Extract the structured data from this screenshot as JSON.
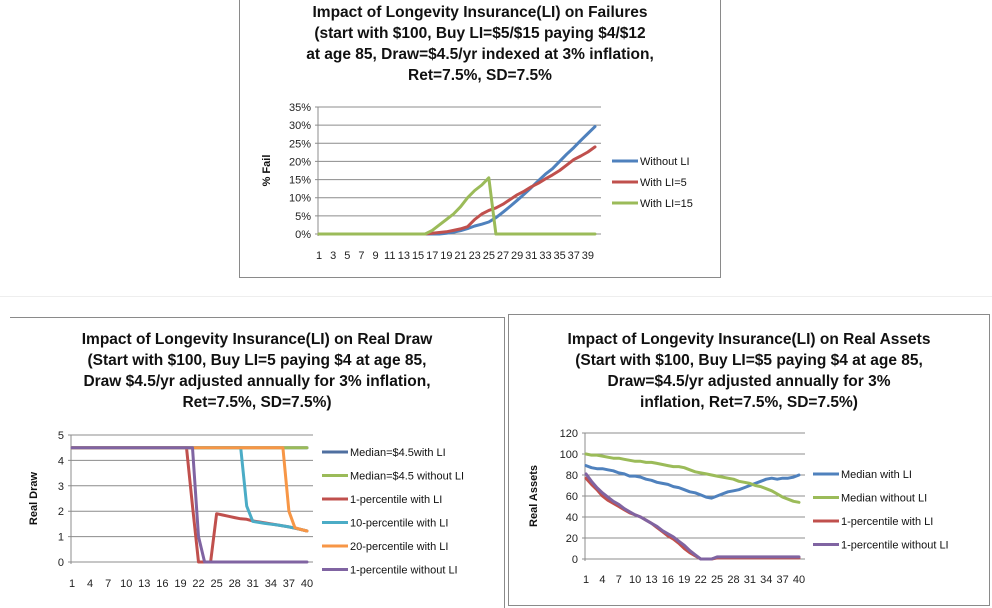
{
  "chart_data": [
    {
      "id": "failures",
      "type": "line",
      "title": "Impact of Longevity Insurance(LI) on Failures\n(start with $100, Buy LI=$5/$15 paying $4/$12\nat age 85, Draw=$4.5/yr indexed at 3% inflation,\nRet=7.5%, SD=7.5%",
      "xlabel": "",
      "ylabel": "% Fail",
      "ylim": [
        0,
        0.35
      ],
      "yticks": [
        0,
        0.05,
        0.1,
        0.15,
        0.2,
        0.25,
        0.3,
        0.35
      ],
      "ytick_labels": [
        "0%",
        "5%",
        "10%",
        "15%",
        "20%",
        "25%",
        "30%",
        "35%"
      ],
      "x": [
        1,
        2,
        3,
        4,
        5,
        6,
        7,
        8,
        9,
        10,
        11,
        12,
        13,
        14,
        15,
        16,
        17,
        18,
        19,
        20,
        21,
        22,
        23,
        24,
        25,
        26,
        27,
        28,
        29,
        30,
        31,
        32,
        33,
        34,
        35,
        36,
        37,
        38,
        39,
        40
      ],
      "xtick_labels": [
        "1",
        "3",
        "5",
        "7",
        "9",
        "11",
        "13",
        "15",
        "17",
        "19",
        "21",
        "23",
        "25",
        "27",
        "29",
        "31",
        "33",
        "35",
        "37",
        "39"
      ],
      "grid": true,
      "legend": "right",
      "series": [
        {
          "name": "Without LI",
          "color": "#4f81bd",
          "values": [
            0,
            0,
            0,
            0,
            0,
            0,
            0,
            0,
            0,
            0,
            0,
            0,
            0,
            0,
            0,
            0,
            0,
            0,
            0.002,
            0.005,
            0.009,
            0.015,
            0.022,
            0.027,
            0.033,
            0.045,
            0.06,
            0.076,
            0.093,
            0.11,
            0.128,
            0.147,
            0.165,
            0.18,
            0.2,
            0.22,
            0.238,
            0.258,
            0.277,
            0.296
          ]
        },
        {
          "name": "With LI=5",
          "color": "#c0504d",
          "values": [
            0,
            0,
            0,
            0,
            0,
            0,
            0,
            0,
            0,
            0,
            0,
            0,
            0,
            0,
            0,
            0,
            0.002,
            0.004,
            0.006,
            0.01,
            0.014,
            0.02,
            0.04,
            0.055,
            0.065,
            0.072,
            0.082,
            0.095,
            0.108,
            0.118,
            0.13,
            0.14,
            0.152,
            0.163,
            0.175,
            0.19,
            0.205,
            0.215,
            0.226,
            0.24
          ]
        },
        {
          "name": "With LI=15",
          "color": "#9bbb59",
          "values": [
            0,
            0,
            0,
            0,
            0,
            0,
            0,
            0,
            0,
            0,
            0,
            0,
            0,
            0,
            0,
            0,
            0.01,
            0.025,
            0.04,
            0.055,
            0.075,
            0.1,
            0.12,
            0.135,
            0.155,
            0,
            0,
            0,
            0,
            0,
            0,
            0,
            0,
            0,
            0,
            0,
            0,
            0,
            0,
            0
          ]
        }
      ]
    },
    {
      "id": "real_draw",
      "type": "line",
      "title": "Impact of Longevity Insurance(LI) on Real Draw\n(Start with $100, Buy LI=5 paying $4 at age 85,\nDraw $4.5/yr adjusted annually for 3% inflation,\nRet=7.5%, SD=7.5%)",
      "xlabel": "",
      "ylabel": "Real Draw",
      "ylim": [
        0,
        5
      ],
      "yticks": [
        0,
        1,
        2,
        3,
        4,
        5
      ],
      "ytick_labels": [
        "0",
        "1",
        "2",
        "3",
        "4",
        "5"
      ],
      "x": [
        1,
        2,
        3,
        4,
        5,
        6,
        7,
        8,
        9,
        10,
        11,
        12,
        13,
        14,
        15,
        16,
        17,
        18,
        19,
        20,
        21,
        22,
        23,
        24,
        25,
        26,
        27,
        28,
        29,
        30,
        31,
        32,
        33,
        34,
        35,
        36,
        37,
        38,
        39,
        40
      ],
      "xtick_labels": [
        "1",
        "4",
        "7",
        "10",
        "13",
        "16",
        "19",
        "22",
        "25",
        "28",
        "31",
        "34",
        "37",
        "40"
      ],
      "grid": true,
      "legend": "right",
      "series": [
        {
          "name": "Median=$4.5with LI",
          "color": "#4f6fa0",
          "values": [
            4.5,
            4.5,
            4.5,
            4.5,
            4.5,
            4.5,
            4.5,
            4.5,
            4.5,
            4.5,
            4.5,
            4.5,
            4.5,
            4.5,
            4.5,
            4.5,
            4.5,
            4.5,
            4.5,
            4.5,
            4.5,
            4.5,
            4.5,
            4.5,
            4.5,
            4.5,
            4.5,
            4.5,
            4.5,
            4.5,
            4.5,
            4.5,
            4.5,
            4.5,
            4.5,
            4.5,
            4.5,
            4.5,
            4.5,
            4.5
          ]
        },
        {
          "name": "Median=$4.5 without LI",
          "color": "#9bbb59",
          "values": [
            4.5,
            4.5,
            4.5,
            4.5,
            4.5,
            4.5,
            4.5,
            4.5,
            4.5,
            4.5,
            4.5,
            4.5,
            4.5,
            4.5,
            4.5,
            4.5,
            4.5,
            4.5,
            4.5,
            4.5,
            4.5,
            4.5,
            4.5,
            4.5,
            4.5,
            4.5,
            4.5,
            4.5,
            4.5,
            4.5,
            4.5,
            4.5,
            4.5,
            4.5,
            4.5,
            4.5,
            4.5,
            4.5,
            4.5,
            4.5
          ]
        },
        {
          "name": "1-percentile with LI",
          "color": "#c0504d",
          "values": [
            4.5,
            4.5,
            4.5,
            4.5,
            4.5,
            4.5,
            4.5,
            4.5,
            4.5,
            4.5,
            4.5,
            4.5,
            4.5,
            4.5,
            4.5,
            4.5,
            4.5,
            4.5,
            4.5,
            4.5,
            2.2,
            0,
            0,
            0,
            1.9,
            1.85,
            1.8,
            1.75,
            1.7,
            1.68,
            1.62,
            1.58,
            1.54,
            1.5,
            1.46,
            1.42,
            1.38,
            1.33,
            1.28,
            1.22
          ]
        },
        {
          "name": "10-percentile with LI",
          "color": "#4bacc6",
          "values": [
            4.5,
            4.5,
            4.5,
            4.5,
            4.5,
            4.5,
            4.5,
            4.5,
            4.5,
            4.5,
            4.5,
            4.5,
            4.5,
            4.5,
            4.5,
            4.5,
            4.5,
            4.5,
            4.5,
            4.5,
            4.5,
            4.5,
            4.5,
            4.5,
            4.5,
            4.5,
            4.5,
            4.5,
            4.5,
            2.2,
            1.6,
            1.56,
            1.52,
            1.49,
            1.46,
            1.42,
            1.38,
            1.33,
            1.28,
            1.22
          ]
        },
        {
          "name": "20-percentile with LI",
          "color": "#f79646",
          "values": [
            4.5,
            4.5,
            4.5,
            4.5,
            4.5,
            4.5,
            4.5,
            4.5,
            4.5,
            4.5,
            4.5,
            4.5,
            4.5,
            4.5,
            4.5,
            4.5,
            4.5,
            4.5,
            4.5,
            4.5,
            4.5,
            4.5,
            4.5,
            4.5,
            4.5,
            4.5,
            4.5,
            4.5,
            4.5,
            4.5,
            4.5,
            4.5,
            4.5,
            4.5,
            4.5,
            4.5,
            2.0,
            1.35,
            1.28,
            1.22
          ]
        },
        {
          "name": "1-percentile without LI",
          "color": "#8064a2",
          "values": [
            4.5,
            4.5,
            4.5,
            4.5,
            4.5,
            4.5,
            4.5,
            4.5,
            4.5,
            4.5,
            4.5,
            4.5,
            4.5,
            4.5,
            4.5,
            4.5,
            4.5,
            4.5,
            4.5,
            4.5,
            4.5,
            1.0,
            0,
            0,
            0,
            0,
            0,
            0,
            0,
            0,
            0,
            0,
            0,
            0,
            0,
            0,
            0,
            0,
            0,
            0
          ]
        }
      ]
    },
    {
      "id": "real_assets",
      "type": "line",
      "title": "Impact of Longevity Insurance(LI) on Real Assets\n(Start with $100, Buy LI=$5 paying $4 at age 85,\nDraw=$4.5/yr adjusted annually for  3%\ninflation, Ret=7.5%, SD=7.5%)",
      "xlabel": "",
      "ylabel": "Real Assets",
      "ylim": [
        0,
        120
      ],
      "yticks": [
        0,
        20,
        40,
        60,
        80,
        100,
        120
      ],
      "ytick_labels": [
        "0",
        "20",
        "40",
        "60",
        "80",
        "100",
        "120"
      ],
      "x": [
        1,
        2,
        3,
        4,
        5,
        6,
        7,
        8,
        9,
        10,
        11,
        12,
        13,
        14,
        15,
        16,
        17,
        18,
        19,
        20,
        21,
        22,
        23,
        24,
        25,
        26,
        27,
        28,
        29,
        30,
        31,
        32,
        33,
        34,
        35,
        36,
        37,
        38,
        39,
        40
      ],
      "xtick_labels": [
        "1",
        "4",
        "7",
        "10",
        "13",
        "16",
        "19",
        "22",
        "25",
        "28",
        "31",
        "34",
        "37",
        "40"
      ],
      "grid": true,
      "legend": "right",
      "series": [
        {
          "name": "Median with LI",
          "color": "#4f81bd",
          "values": [
            89,
            87,
            86,
            86,
            85,
            84,
            82,
            81,
            79,
            79,
            78,
            76,
            75,
            73,
            72,
            71,
            69,
            68,
            66,
            64,
            63,
            61,
            59,
            58,
            60,
            62,
            64,
            65,
            66,
            68,
            70,
            72,
            74,
            76,
            77,
            76,
            77,
            77,
            78,
            80
          ]
        },
        {
          "name": "Median without LI",
          "color": "#9bbb59",
          "values": [
            100,
            99,
            99,
            98,
            97,
            96,
            96,
            95,
            94,
            93,
            93,
            92,
            92,
            91,
            90,
            89,
            88,
            88,
            87,
            85,
            83,
            82,
            81,
            80,
            79,
            78,
            77,
            76,
            74,
            73,
            72,
            70,
            69,
            67,
            65,
            62,
            59,
            57,
            55,
            54
          ]
        },
        {
          "name": "1-percentile with LI",
          "color": "#c0504d",
          "values": [
            77,
            71,
            66,
            60,
            56,
            53,
            50,
            47,
            44,
            42,
            40,
            37,
            34,
            30,
            26,
            22,
            19,
            15,
            10,
            6,
            3,
            0,
            0,
            0,
            1,
            1,
            1,
            1,
            1,
            1,
            1,
            1,
            1,
            1,
            1,
            1,
            1,
            1,
            1,
            1
          ]
        },
        {
          "name": "1-percentile without LI",
          "color": "#8064a2",
          "values": [
            81,
            74,
            68,
            63,
            59,
            55,
            52,
            48,
            45,
            42,
            40,
            37,
            34,
            31,
            27,
            24,
            21,
            17,
            13,
            8,
            4,
            0,
            0,
            0,
            2,
            2,
            2,
            2,
            2,
            2,
            2,
            2,
            2,
            2,
            2,
            2,
            2,
            2,
            2,
            2
          ]
        }
      ]
    }
  ]
}
